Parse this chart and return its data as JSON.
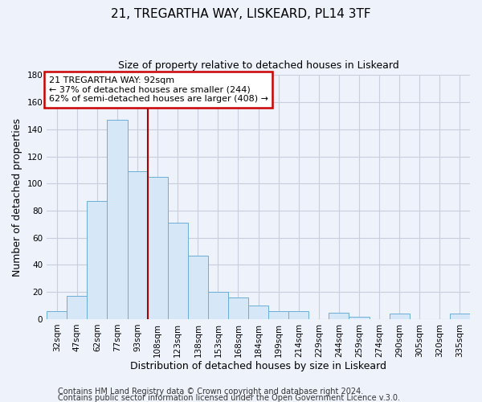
{
  "title": "21, TREGARTHA WAY, LISKEARD, PL14 3TF",
  "subtitle": "Size of property relative to detached houses in Liskeard",
  "xlabel": "Distribution of detached houses by size in Liskeard",
  "ylabel": "Number of detached properties",
  "categories": [
    "32sqm",
    "47sqm",
    "62sqm",
    "77sqm",
    "93sqm",
    "108sqm",
    "123sqm",
    "138sqm",
    "153sqm",
    "168sqm",
    "184sqm",
    "199sqm",
    "214sqm",
    "229sqm",
    "244sqm",
    "259sqm",
    "274sqm",
    "290sqm",
    "305sqm",
    "320sqm",
    "335sqm"
  ],
  "values": [
    6,
    17,
    87,
    147,
    109,
    105,
    71,
    47,
    20,
    16,
    10,
    6,
    6,
    0,
    5,
    2,
    0,
    4,
    0,
    0,
    4
  ],
  "bar_color": "#d6e8f7",
  "bar_edge_color": "#6aaed6",
  "ylim": [
    0,
    180
  ],
  "yticks": [
    0,
    20,
    40,
    60,
    80,
    100,
    120,
    140,
    160,
    180
  ],
  "property_line_index": 4,
  "property_line_color": "#aa0000",
  "annotation_title": "21 TREGARTHA WAY: 92sqm",
  "annotation_line1": "← 37% of detached houses are smaller (244)",
  "annotation_line2": "62% of semi-detached houses are larger (408) →",
  "annotation_box_color": "#ffffff",
  "annotation_box_edge": "#cc0000",
  "background_color": "#eef2fa",
  "plot_bg_color": "#eef2fa",
  "grid_color": "#c8cedc",
  "footer1": "Contains HM Land Registry data © Crown copyright and database right 2024.",
  "footer2": "Contains public sector information licensed under the Open Government Licence v.3.0.",
  "title_fontsize": 11,
  "subtitle_fontsize": 9,
  "axis_label_fontsize": 9,
  "tick_fontsize": 7.5,
  "footer_fontsize": 7
}
